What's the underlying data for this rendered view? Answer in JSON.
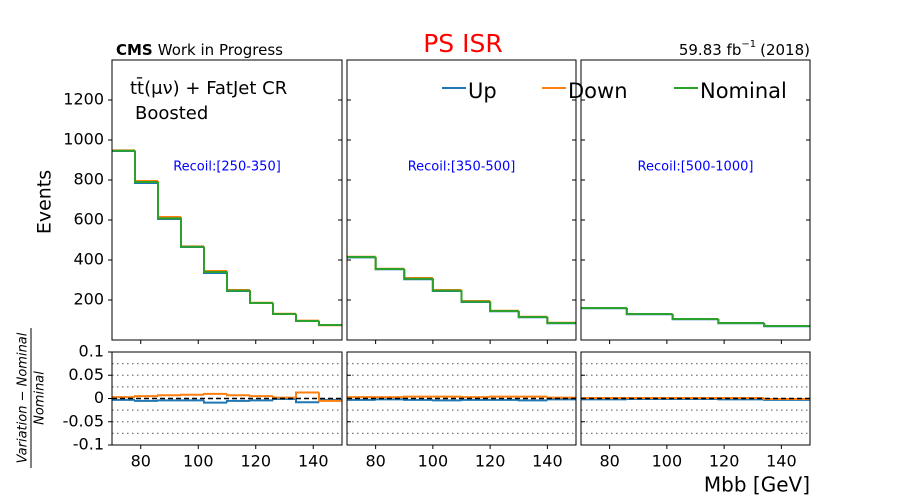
{
  "chart_data": {
    "type": "step",
    "title": "PS ISR",
    "experiment": "CMS",
    "experiment_note": "Work in Progress",
    "lumi": "59.83 fb",
    "lumi_exponent": "−1",
    "lumi_period": "(2018)",
    "annotation": [
      "tt̄(μν) + FatJet CR",
      "Boosted"
    ],
    "ylabel": "Events",
    "ratio_ylabel_numerator": "Variation − Nominal",
    "ratio_ylabel_denominator": "Nominal",
    "xlabel": "Mbb [GeV]",
    "xlim": [
      70,
      150
    ],
    "xticks": [
      80,
      100,
      120,
      140
    ],
    "ylim": [
      0,
      1400
    ],
    "yticks": [
      200,
      400,
      600,
      800,
      1000,
      1200
    ],
    "ratio_ylim": [
      -0.1,
      0.1
    ],
    "ratio_yticks": [
      -0.1,
      -0.05,
      0,
      0.05,
      0.1
    ],
    "ratio_gridlines": [
      -0.075,
      -0.05,
      -0.025,
      0.025,
      0.05,
      0.075
    ],
    "ratio_reference": 0,
    "panels": [
      {
        "label": "Recoil:[250-350]",
        "bins": [
          70,
          78,
          86,
          94,
          102,
          110,
          118,
          126,
          134,
          142,
          150
        ],
        "series": [
          {
            "name": "Up",
            "color": "#1f77b4",
            "values": [
              945,
              785,
              605,
              465,
              335,
              245,
              185,
              130,
              95,
              75
            ],
            "ratio": [
              -0.003,
              -0.005,
              -0.004,
              -0.004,
              -0.009,
              -0.005,
              -0.004,
              -0.001,
              -0.008,
              -0.003
            ]
          },
          {
            "name": "Down",
            "color": "#ff7f0e",
            "values": [
              948,
              795,
              615,
              468,
              345,
              250,
              186,
              131,
              97,
              74
            ],
            "ratio": [
              0.003,
              0.005,
              0.007,
              0.008,
              0.01,
              0.007,
              0.005,
              0.002,
              0.013,
              -0.005
            ]
          },
          {
            "name": "Nominal",
            "color": "#2ca02c",
            "values": [
              946,
              790,
              608,
              466,
              340,
              247,
              185,
              130,
              95,
              75
            ]
          }
        ]
      },
      {
        "label": "Recoil:[350-500]",
        "bins": [
          70,
          80,
          90,
          100,
          110,
          120,
          130,
          140,
          150
        ],
        "series": [
          {
            "name": "Up",
            "color": "#1f77b4",
            "values": [
              413,
              354,
              304,
              245,
              190,
              144,
              114,
              84
            ],
            "ratio": [
              -0.003,
              -0.002,
              -0.003,
              -0.004,
              -0.003,
              -0.003,
              -0.004,
              -0.002
            ]
          },
          {
            "name": "Down",
            "color": "#ff7f0e",
            "values": [
              416,
              356,
              310,
              250,
              195,
              146,
              116,
              86
            ],
            "ratio": [
              0.003,
              0.003,
              0.004,
              0.004,
              0.003,
              0.004,
              0.004,
              0.002
            ]
          },
          {
            "name": "Nominal",
            "color": "#2ca02c",
            "values": [
              415,
              355,
              306,
              247,
              192,
              145,
              115,
              85
            ]
          }
        ]
      },
      {
        "label": "Recoil:[500-1000]",
        "bins": [
          70,
          86,
          102,
          118,
          134,
          150
        ],
        "series": [
          {
            "name": "Up",
            "color": "#1f77b4",
            "values": [
              159,
              129,
              104,
              84,
              69
            ],
            "ratio": [
              -0.002,
              -0.001,
              -0.001,
              -0.002,
              -0.003
            ]
          },
          {
            "name": "Down",
            "color": "#ff7f0e",
            "values": [
              160,
              130,
              105,
              85,
              70
            ],
            "ratio": [
              0.001,
              0.001,
              0.001,
              0.001,
              -0.001
            ]
          },
          {
            "name": "Nominal",
            "color": "#2ca02c",
            "values": [
              160,
              130,
              105,
              85,
              70
            ]
          }
        ]
      }
    ]
  }
}
